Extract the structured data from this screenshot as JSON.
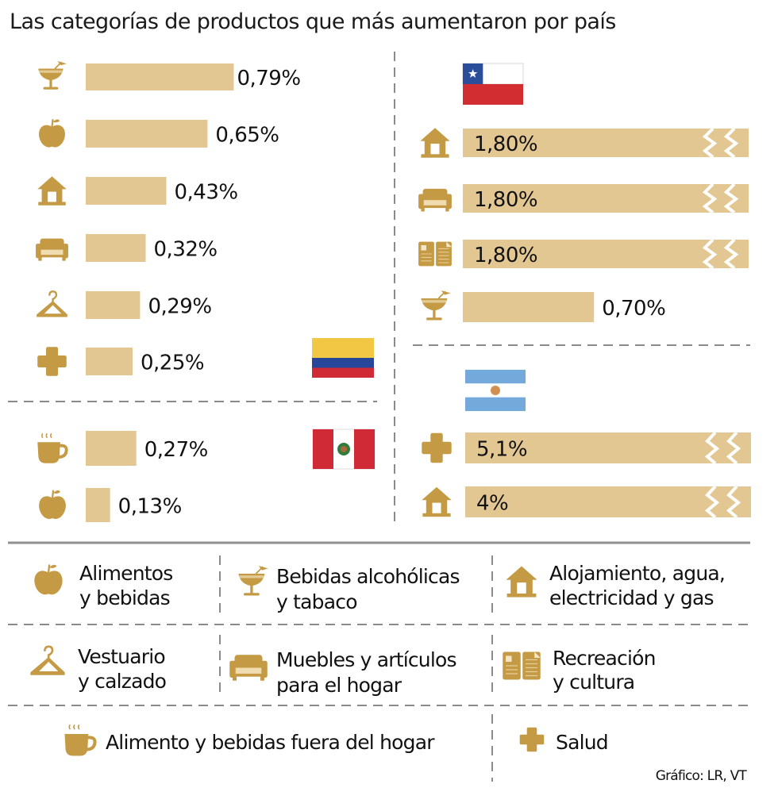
{
  "title": "Las categorías de productos que más aumentaron por país",
  "credit": "Gráfico: LR, VT",
  "colors": {
    "bar": "#e3c793",
    "icon": "#c49a45",
    "divider": "#8a8a8a",
    "text": "#111111"
  },
  "categories": {
    "alimentos": {
      "icon": "apple-icon",
      "label_lines": [
        "Alimentos",
        "y bebidas"
      ]
    },
    "bebidas_alcoholicas": {
      "icon": "cocktail-icon",
      "label_lines": [
        "Bebidas alcohólicas",
        " y tabaco"
      ]
    },
    "alojamiento": {
      "icon": "house-icon",
      "label_lines": [
        "Alojamiento, agua,",
        "electricidad y gas"
      ]
    },
    "vestuario": {
      "icon": "hanger-icon",
      "label_lines": [
        "Vestuario",
        "y calzado"
      ]
    },
    "muebles": {
      "icon": "sofa-icon",
      "label_lines": [
        "Muebles y artículos",
        "para el hogar"
      ]
    },
    "recreacion": {
      "icon": "book-icon",
      "label_lines": [
        "Recreación",
        "y cultura"
      ]
    },
    "fuera_hogar": {
      "icon": "coffee-cup-icon",
      "label_lines": [
        "Alimento y bebidas fuera del hogar"
      ]
    },
    "salud": {
      "icon": "health-cross-icon",
      "label_lines": [
        "Salud"
      ]
    }
  },
  "chart_data": [
    {
      "type": "bar",
      "country": "Colombia",
      "flag": "colombia-flag",
      "unit": "%",
      "categories": [
        "bebidas_alcoholicas",
        "alimentos",
        "alojamiento",
        "muebles",
        "vestuario",
        "salud"
      ],
      "values": [
        0.79,
        0.65,
        0.43,
        0.32,
        0.29,
        0.25
      ],
      "labels": [
        "0,79%",
        "0,65%",
        "0,43%",
        "0,32%",
        "0,29%",
        "0,25%"
      ],
      "truncated": [
        false,
        false,
        false,
        false,
        false,
        false
      ]
    },
    {
      "type": "bar",
      "country": "Perú",
      "flag": "peru-flag",
      "unit": "%",
      "categories": [
        "fuera_hogar",
        "alimentos"
      ],
      "values": [
        0.27,
        0.13
      ],
      "labels": [
        "0,27%",
        "0,13%"
      ],
      "truncated": [
        false,
        false
      ]
    },
    {
      "type": "bar",
      "country": "Chile",
      "flag": "chile-flag",
      "unit": "%",
      "categories": [
        "alojamiento",
        "muebles",
        "recreacion",
        "bebidas_alcoholicas"
      ],
      "values": [
        1.8,
        1.8,
        1.8,
        0.7
      ],
      "labels": [
        "1,80%",
        "1,80%",
        "1,80%",
        "0,70%"
      ],
      "truncated": [
        true,
        true,
        true,
        false
      ]
    },
    {
      "type": "bar",
      "country": "Argentina",
      "flag": "argentina-flag",
      "unit": "%",
      "categories": [
        "salud",
        "alojamiento"
      ],
      "values": [
        5.1,
        4.0
      ],
      "labels": [
        "5,1%",
        "4%"
      ],
      "truncated": [
        true,
        true
      ]
    }
  ]
}
